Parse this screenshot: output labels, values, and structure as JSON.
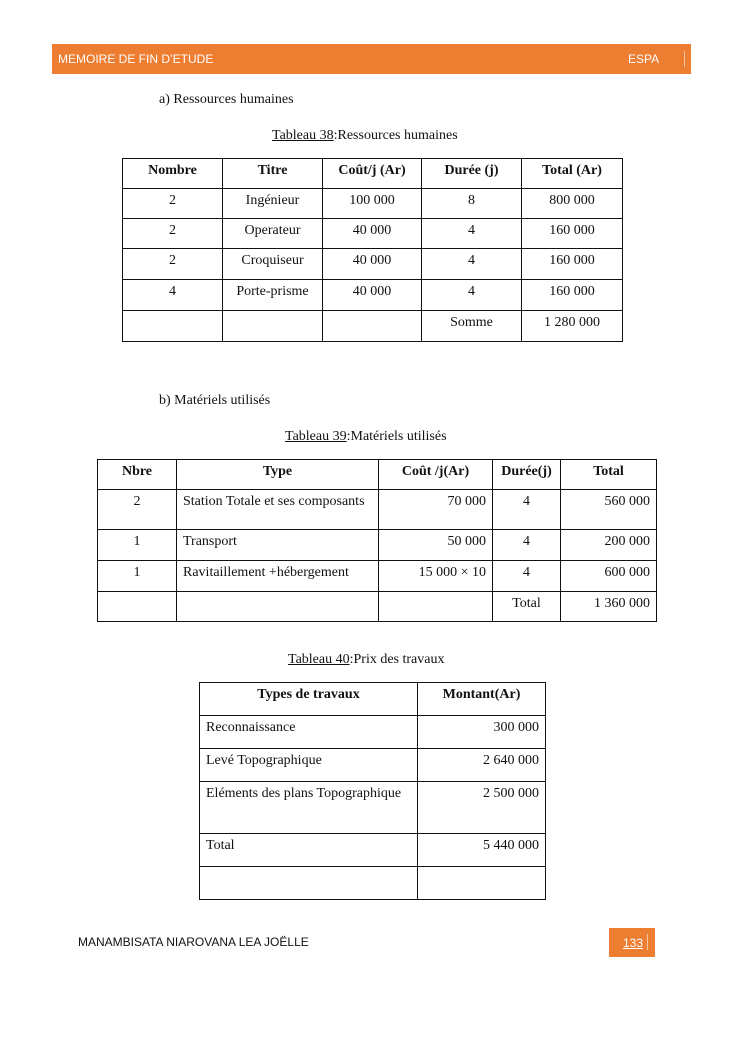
{
  "header": {
    "left": "MEMOIRE DE FIN D’ETUDE",
    "right": "ESPA",
    "color": "#ED7D31"
  },
  "section_a": {
    "label": "a)",
    "title": "Ressources humaines"
  },
  "table38": {
    "caption_ref": "Tableau 38",
    "caption_text": ":Ressources humaines",
    "headers": [
      "Nombre",
      "Titre",
      "Coût/j (Ar)",
      "Durée (j)",
      "Total (Ar)"
    ],
    "rows": [
      [
        "2",
        "Ingénieur",
        "100 000",
        "8",
        "800 000"
      ],
      [
        "2",
        "Operateur",
        "40 000",
        "4",
        "160 000"
      ],
      [
        "2",
        "Croquiseur",
        "40 000",
        "4",
        "160 000"
      ],
      [
        "4",
        "Porte-prisme",
        "40 000",
        "4",
        "160 000"
      ],
      [
        "",
        "",
        "",
        "Somme",
        "1 280 000"
      ]
    ]
  },
  "section_b": {
    "label": "b)",
    "title": "Matériels utilisés"
  },
  "table39": {
    "caption_ref": "Tableau 39",
    "caption_text": ":Matériels utilisés",
    "headers": [
      "Nbre",
      "Type",
      "Coût /j(Ar)",
      "Durée(j)",
      "Total"
    ],
    "rows": [
      [
        "2",
        "Station Totale et ses composants",
        "70 000",
        "4",
        "560 000"
      ],
      [
        "1",
        "Transport",
        "50 000",
        "4",
        "200 000"
      ],
      [
        "1",
        "Ravitaillement +hébergement",
        "15 000 × 10",
        "4",
        "600 000"
      ],
      [
        "",
        "",
        "",
        "Total",
        "1 360 000"
      ]
    ]
  },
  "table40": {
    "caption_ref": "Tableau 40",
    "caption_text": ":Prix des travaux",
    "headers": [
      "Types de travaux",
      "Montant(Ar)"
    ],
    "rows": [
      [
        "Reconnaissance",
        "300 000"
      ],
      [
        "Levé Topographique",
        "2 640 000"
      ],
      [
        "Eléments des plans Topographique",
        "2 500 000"
      ],
      [
        "Total",
        "5 440 000"
      ],
      [
        "",
        ""
      ]
    ]
  },
  "footer": {
    "author": "MANAMBISATA NIAROVANA LEA JOËLLE",
    "page": "133"
  }
}
